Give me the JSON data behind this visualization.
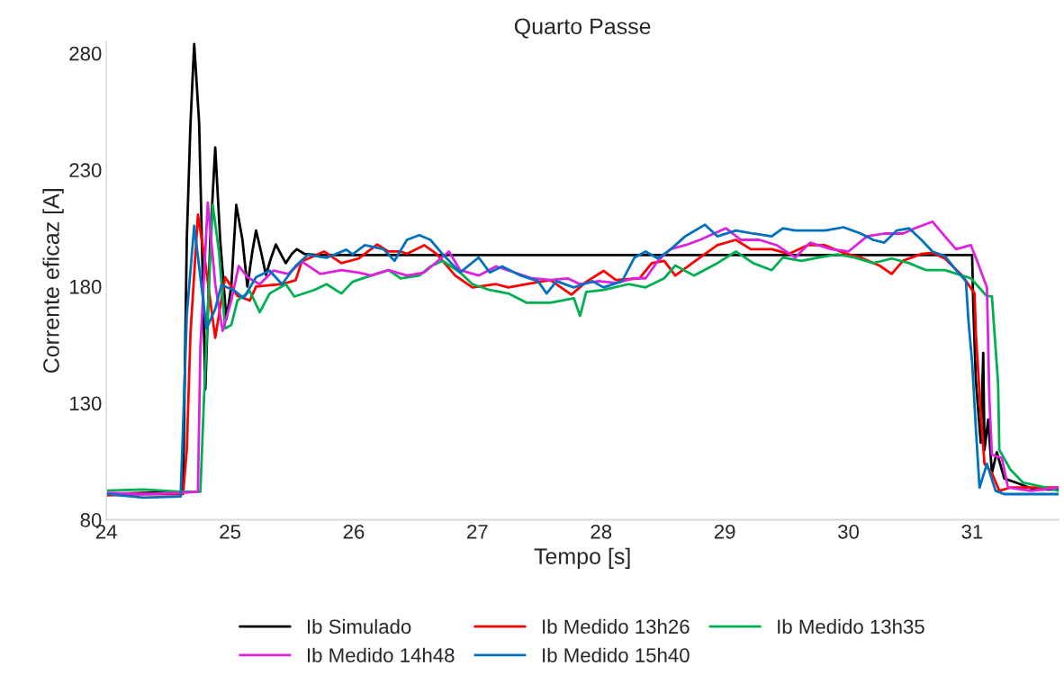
{
  "chart_data": {
    "type": "line",
    "title": "Quarto Passe",
    "xlabel": "Tempo [s]",
    "ylabel": "Corrente eficaz [A]",
    "xlim": [
      24,
      31.7
    ],
    "xticks": [
      24,
      25,
      26,
      27,
      28,
      29,
      30,
      31
    ],
    "ylim": [
      80,
      285
    ],
    "yticks": [
      80,
      130,
      180,
      230,
      280
    ],
    "grid": false,
    "legend": "bottom",
    "series": [
      {
        "name": "Ib Simulado",
        "color": "#000000",
        "x": [
          24,
          24.62,
          24.65,
          24.68,
          24.71,
          24.75,
          24.8,
          24.84,
          24.88,
          24.92,
          24.97,
          25.01,
          25.05,
          25.1,
          25.14,
          25.18,
          25.21,
          25.25,
          25.29,
          25.33,
          25.37,
          25.41,
          25.45,
          25.5,
          25.54,
          25.6,
          25.7,
          31.0,
          31.01,
          31.03,
          31.07,
          31.09,
          31.1,
          31.13,
          31.16,
          31.2,
          31.26,
          31.35,
          31.5,
          31.7
        ],
        "values": [
          91,
          92,
          200,
          250,
          284,
          250,
          136,
          200,
          239.6,
          200,
          166,
          180,
          215,
          200,
          180,
          195,
          204,
          195,
          185,
          192,
          198,
          194,
          190,
          194,
          196,
          194,
          193.5,
          193.5,
          171,
          140,
          113,
          151.5,
          110,
          123,
          100,
          109,
          97.7,
          96,
          93,
          93
        ]
      },
      {
        "name": "Ib Medido 13h26",
        "color": "#ff0000",
        "x": [
          24,
          24.3,
          24.62,
          24.65,
          24.68,
          24.74,
          24.8,
          24.88,
          24.96,
          25.06,
          25.16,
          25.21,
          25.42,
          25.53,
          25.58,
          25.76,
          25.9,
          26.04,
          26.19,
          26.28,
          26.38,
          26.43,
          26.57,
          26.67,
          26.82,
          26.96,
          27.15,
          27.25,
          27.4,
          27.59,
          27.76,
          27.88,
          28.02,
          28.12,
          28.31,
          28.41,
          28.51,
          28.6,
          28.8,
          28.94,
          29.09,
          29.21,
          29.38,
          29.52,
          29.67,
          29.81,
          29.96,
          30.1,
          30.25,
          30.35,
          30.44,
          30.59,
          30.68,
          30.78,
          30.92,
          31.02,
          31.03,
          31.07,
          31.1,
          31.16,
          31.22,
          31.31,
          31.48,
          31.7
        ],
        "values": [
          90.5,
          91,
          91,
          110,
          160,
          210.8,
          190,
          158,
          184,
          176,
          174,
          180,
          181,
          182.7,
          190.7,
          195,
          190,
          192,
          198,
          195,
          195,
          194,
          197.7,
          194,
          184.7,
          179.6,
          181,
          179.6,
          181,
          182.8,
          176.5,
          182,
          186.7,
          182.8,
          183.5,
          190,
          191,
          184.7,
          192.4,
          197.7,
          200,
          196,
          196,
          194,
          197.7,
          197.7,
          194.4,
          192.4,
          189,
          185.4,
          191,
          194,
          194.4,
          192,
          184.7,
          177,
          160,
          125.8,
          104,
          100,
          92.4,
          93.8,
          93.8,
          93.8
        ]
      },
      {
        "name": "Ib Medido 13h35",
        "color": "#00b050",
        "x": [
          24,
          24.3,
          24.6,
          24.76,
          24.79,
          24.83,
          24.86,
          24.91,
          24.96,
          25.01,
          25.06,
          25.16,
          25.24,
          25.32,
          25.45,
          25.52,
          25.68,
          25.78,
          25.9,
          25.99,
          26.14,
          26.28,
          26.38,
          26.53,
          26.62,
          26.72,
          26.86,
          26.96,
          27.1,
          27.25,
          27.4,
          27.59,
          27.78,
          27.83,
          27.88,
          28.02,
          28.22,
          28.36,
          28.51,
          28.6,
          28.75,
          28.94,
          29.09,
          29.23,
          29.38,
          29.47,
          29.62,
          29.76,
          29.91,
          30.05,
          30.2,
          30.35,
          30.49,
          30.63,
          30.78,
          30.92,
          30.99,
          31.12,
          31.16,
          31.21,
          31.22,
          31.31,
          31.41,
          31.6,
          31.7
        ],
        "values": [
          92.5,
          93,
          92,
          92,
          133,
          181,
          215,
          195,
          162,
          163.5,
          174,
          178,
          169,
          177,
          181,
          175.7,
          178.5,
          181,
          177,
          182,
          184.7,
          187,
          183.5,
          184.7,
          188.6,
          191,
          186,
          181,
          178.5,
          177,
          173,
          173,
          175,
          167.4,
          177.7,
          178.5,
          181,
          179.6,
          183.5,
          189,
          184.7,
          190,
          195,
          190,
          187,
          192.4,
          191,
          192.4,
          193.8,
          192.4,
          190,
          192,
          190,
          187,
          187,
          184.7,
          183.5,
          175.8,
          175.8,
          138.6,
          110,
          101.5,
          96,
          93.8,
          92.4
        ]
      },
      {
        "name": "Ib Medido 14h48",
        "color": "#e020e0",
        "x": [
          24,
          24.3,
          24.6,
          24.74,
          24.76,
          24.82,
          24.88,
          24.94,
          25.01,
          25.07,
          25.14,
          25.24,
          25.35,
          25.47,
          25.58,
          25.73,
          25.9,
          26.04,
          26.14,
          26.28,
          26.43,
          26.57,
          26.77,
          26.86,
          27.01,
          27.15,
          27.3,
          27.44,
          27.59,
          27.73,
          27.83,
          27.98,
          28.12,
          28.27,
          28.36,
          28.46,
          28.56,
          28.68,
          28.8,
          29.01,
          29.13,
          29.28,
          29.42,
          29.57,
          29.69,
          29.86,
          30.0,
          30.15,
          30.29,
          30.44,
          30.54,
          30.68,
          30.78,
          30.87,
          30.99,
          31.04,
          31.12,
          31.14,
          31.16,
          31.24,
          31.29,
          31.48,
          31.7
        ],
        "values": [
          91.5,
          91,
          91.5,
          92,
          154,
          216,
          181,
          161,
          174,
          188.8,
          184,
          181,
          186.8,
          185.4,
          190.7,
          185.4,
          187,
          186,
          184.7,
          187,
          184.7,
          186,
          195,
          187,
          184.7,
          188.6,
          186,
          183.5,
          182.8,
          183.5,
          181,
          182.3,
          181.5,
          183.5,
          183.5,
          191,
          196,
          197.7,
          200,
          205,
          200,
          200,
          197.7,
          192.4,
          198.8,
          196,
          195,
          201.5,
          202.7,
          202.7,
          205,
          207.8,
          201.5,
          196,
          197.7,
          191,
          179.6,
          131,
          107.8,
          106.5,
          93.8,
          92.4,
          93.8
        ]
      },
      {
        "name": "Ib Medido 15h40",
        "color": "#0070c0",
        "x": [
          24,
          24.3,
          24.6,
          24.62,
          24.65,
          24.71,
          24.76,
          24.81,
          24.88,
          24.93,
          25.03,
          25.11,
          25.21,
          25.32,
          25.42,
          25.53,
          25.63,
          25.78,
          25.94,
          25.99,
          26.09,
          26.24,
          26.33,
          26.43,
          26.53,
          26.62,
          26.72,
          26.86,
          27.01,
          27.1,
          27.2,
          27.35,
          27.49,
          27.56,
          27.64,
          27.78,
          27.93,
          28.02,
          28.17,
          28.27,
          28.36,
          28.46,
          28.56,
          28.68,
          28.84,
          28.94,
          29.09,
          29.23,
          29.38,
          29.47,
          29.57,
          29.69,
          29.81,
          29.96,
          30.1,
          30.2,
          30.29,
          30.39,
          30.49,
          30.59,
          30.68,
          30.78,
          30.87,
          30.95,
          30.97,
          31.0,
          31.03,
          31.06,
          31.12,
          31.19,
          31.26,
          31.48,
          31.7
        ],
        "values": [
          91,
          89.5,
          90,
          120,
          167.7,
          206,
          184,
          162,
          170.4,
          180.6,
          178.5,
          175,
          184,
          186.8,
          181,
          188.8,
          193.6,
          192.3,
          195.8,
          193.8,
          197.7,
          196,
          191,
          200,
          202,
          200,
          193.8,
          186,
          192.4,
          186,
          188.6,
          184.7,
          182.3,
          177,
          182.3,
          179.6,
          182.3,
          179.6,
          182.3,
          192.4,
          195,
          192,
          195.8,
          201.5,
          206.5,
          201.5,
          204,
          202.7,
          201.5,
          205,
          204,
          204,
          204,
          205.4,
          202.7,
          200,
          198.8,
          204,
          205,
          200,
          195,
          193,
          187,
          182.3,
          165.5,
          147.7,
          119.4,
          93.8,
          104,
          92.4,
          91,
          91,
          91
        ]
      }
    ]
  }
}
